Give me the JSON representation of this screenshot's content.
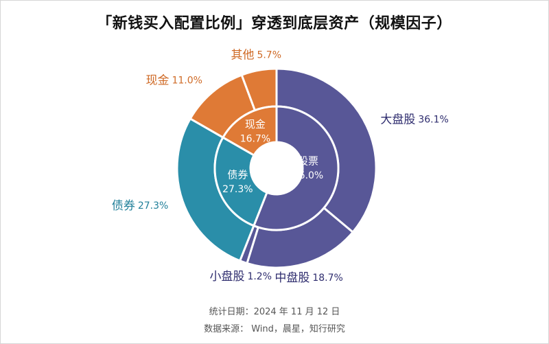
{
  "title": "「新钱买入配置比例」穿透到底层资产（规模因子）",
  "footer": {
    "date_line": "统计日期：2024 年 11 月 12 日",
    "source_line": "数据来源： Wind，晨星，知行研究"
  },
  "chart_data": {
    "type": "pie",
    "subtype": "nested-donut",
    "inner_ring": [
      {
        "label": "股票",
        "value": 56.0,
        "value_label": "56.0%",
        "color": "#585797"
      },
      {
        "label": "债券",
        "value": 27.3,
        "value_label": "27.3%",
        "color": "#2a8ea9"
      },
      {
        "label": "现金",
        "value": 16.7,
        "value_label": "16.7%",
        "color": "#df7a36"
      }
    ],
    "outer_ring": [
      {
        "label": "大盘股",
        "value": 36.1,
        "value_label": "36.1%",
        "color": "#585797",
        "text_color": "#2e2c6e"
      },
      {
        "label": "中盘股",
        "value": 18.7,
        "value_label": "18.7%",
        "color": "#585797",
        "text_color": "#2e2c6e"
      },
      {
        "label": "小盘股",
        "value": 1.2,
        "value_label": "1.2%",
        "color": "#585797",
        "text_color": "#2e2c6e"
      },
      {
        "label": "债券",
        "value": 27.3,
        "value_label": "27.3%",
        "color": "#2a8ea9",
        "text_color": "#1f7f99"
      },
      {
        "label": "现金",
        "value": 11.0,
        "value_label": "11.0%",
        "color": "#df7a36",
        "text_color": "#cf6a26"
      },
      {
        "label": "其他",
        "value": 5.7,
        "value_label": "5.7%",
        "color": "#df7a36",
        "text_color": "#cf6a26"
      }
    ],
    "legend": "none"
  }
}
